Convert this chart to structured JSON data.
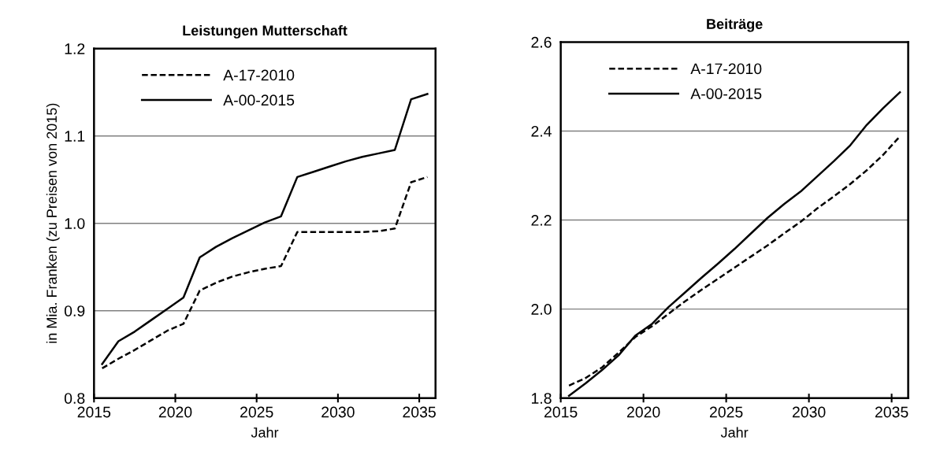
{
  "chart_data": [
    {
      "type": "line",
      "title": "Leistungen Mutterschaft",
      "xlabel": "Jahr",
      "ylabel": "in Mia. Franken (zu Preisen von 2015)",
      "x": [
        2015.5,
        2016.5,
        2017.5,
        2018.5,
        2019.5,
        2020.5,
        2021.5,
        2022.5,
        2023.5,
        2024.5,
        2025.5,
        2026.5,
        2027.5,
        2028.5,
        2029.5,
        2030.5,
        2031.5,
        2032.5,
        2033.5,
        2034.5,
        2035.5
      ],
      "series": [
        {
          "name": "A-17-2010",
          "color": "#000000",
          "line_style": "dashed",
          "values": [
            0.834,
            0.845,
            0.855,
            0.866,
            0.877,
            0.885,
            0.923,
            0.932,
            0.939,
            0.944,
            0.948,
            0.951,
            0.99,
            0.99,
            0.99,
            0.99,
            0.99,
            0.991,
            0.994,
            1.047,
            1.053
          ]
        },
        {
          "name": "A-00-2015",
          "color": "#000000",
          "line_style": "solid",
          "values": [
            0.839,
            0.865,
            0.876,
            0.889,
            0.902,
            0.915,
            0.961,
            0.973,
            0.983,
            0.992,
            1.001,
            1.008,
            1.053,
            1.059,
            1.065,
            1.071,
            1.076,
            1.08,
            1.084,
            1.142,
            1.148
          ]
        }
      ],
      "xlim": [
        2015,
        2036
      ],
      "xticks": [
        2015,
        2020,
        2025,
        2030,
        2035
      ],
      "ylim": [
        0.8,
        1.2
      ],
      "yticks": [
        0.8,
        0.9,
        {
          "value": 1,
          "label": "1.0"
        },
        1.1,
        1.2
      ],
      "grid": "y",
      "legend": "top left"
    },
    {
      "type": "line",
      "title": "Beiträge",
      "xlabel": "Jahr",
      "x": [
        2015.5,
        2016.5,
        2017.5,
        2018.5,
        2019.5,
        2020.5,
        2021.5,
        2022.5,
        2023.5,
        2024.5,
        2025.5,
        2026.5,
        2027.5,
        2028.5,
        2029.5,
        2030.5,
        2031.5,
        2032.5,
        2033.5,
        2034.5,
        2035.5
      ],
      "series": [
        {
          "name": "A-17-2010",
          "color": "#000000",
          "line_style": "dashed",
          "values": [
            1.828,
            1.845,
            1.869,
            1.902,
            1.937,
            1.961,
            1.989,
            2.017,
            2.043,
            2.068,
            2.093,
            2.118,
            2.143,
            2.17,
            2.196,
            2.226,
            2.253,
            2.281,
            2.312,
            2.347,
            2.388
          ]
        },
        {
          "name": "A-00-2015",
          "color": "#000000",
          "line_style": "solid",
          "values": [
            1.805,
            1.833,
            1.863,
            1.896,
            1.94,
            1.966,
            2.004,
            2.037,
            2.07,
            2.102,
            2.135,
            2.17,
            2.205,
            2.236,
            2.264,
            2.298,
            2.332,
            2.368,
            2.414,
            2.452,
            2.487
          ]
        }
      ],
      "xlim": [
        2015,
        2036
      ],
      "xticks": [
        2015,
        2020,
        2025,
        2030,
        2035
      ],
      "ylim": [
        1.8,
        2.6
      ],
      "yticks": [
        1.8,
        {
          "value": 2,
          "label": "2.0"
        },
        2.2,
        2.4,
        2.6
      ],
      "grid": "y",
      "legend": "top left"
    }
  ]
}
